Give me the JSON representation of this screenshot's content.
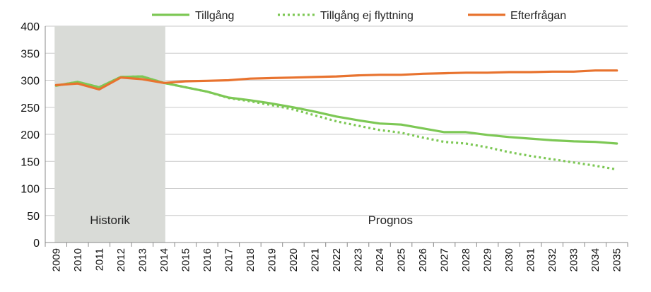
{
  "chart_data": {
    "type": "line",
    "x": [
      "2009",
      "2010",
      "2011",
      "2012",
      "2013",
      "2014",
      "2015",
      "2016",
      "2017",
      "2018",
      "2019",
      "2020",
      "2021",
      "2022",
      "2023",
      "2024",
      "2025",
      "2026",
      "2027",
      "2028",
      "2029",
      "2030",
      "2031",
      "2032",
      "2033",
      "2034",
      "2035"
    ],
    "ylim": [
      0,
      400
    ],
    "yticks": [
      0,
      50,
      100,
      150,
      200,
      250,
      300,
      350,
      400
    ],
    "grid": "horizontal",
    "legend_position": "top",
    "series": [
      {
        "name": "Tillgång",
        "style": "solid",
        "color": "#7dc855",
        "values": [
          290,
          297,
          287,
          306,
          307,
          295,
          287,
          279,
          268,
          263,
          257,
          250,
          242,
          233,
          226,
          220,
          218,
          211,
          204,
          204,
          199,
          195,
          192,
          189,
          187,
          186,
          183
        ]
      },
      {
        "name": "Tillgång ej flyttning",
        "style": "dotted",
        "color": "#7dc855",
        "values": [
          290,
          297,
          287,
          306,
          307,
          295,
          287,
          279,
          267,
          261,
          254,
          246,
          235,
          224,
          216,
          208,
          203,
          194,
          186,
          183,
          176,
          167,
          160,
          154,
          148,
          142,
          135
        ]
      },
      {
        "name": "Efterfrågan",
        "style": "solid",
        "color": "#e8732f",
        "values": [
          291,
          294,
          283,
          305,
          302,
          295,
          298,
          299,
          300,
          303,
          304,
          305,
          306,
          307,
          309,
          310,
          310,
          312,
          313,
          314,
          314,
          315,
          315,
          316,
          316,
          318,
          318
        ]
      }
    ],
    "shaded_region": {
      "from": "2009",
      "to": "2014",
      "color": "#d9dbd7"
    },
    "annotations": [
      {
        "text": "Historik",
        "region": "historic"
      },
      {
        "text": "Prognos",
        "region": "forecast"
      }
    ]
  }
}
